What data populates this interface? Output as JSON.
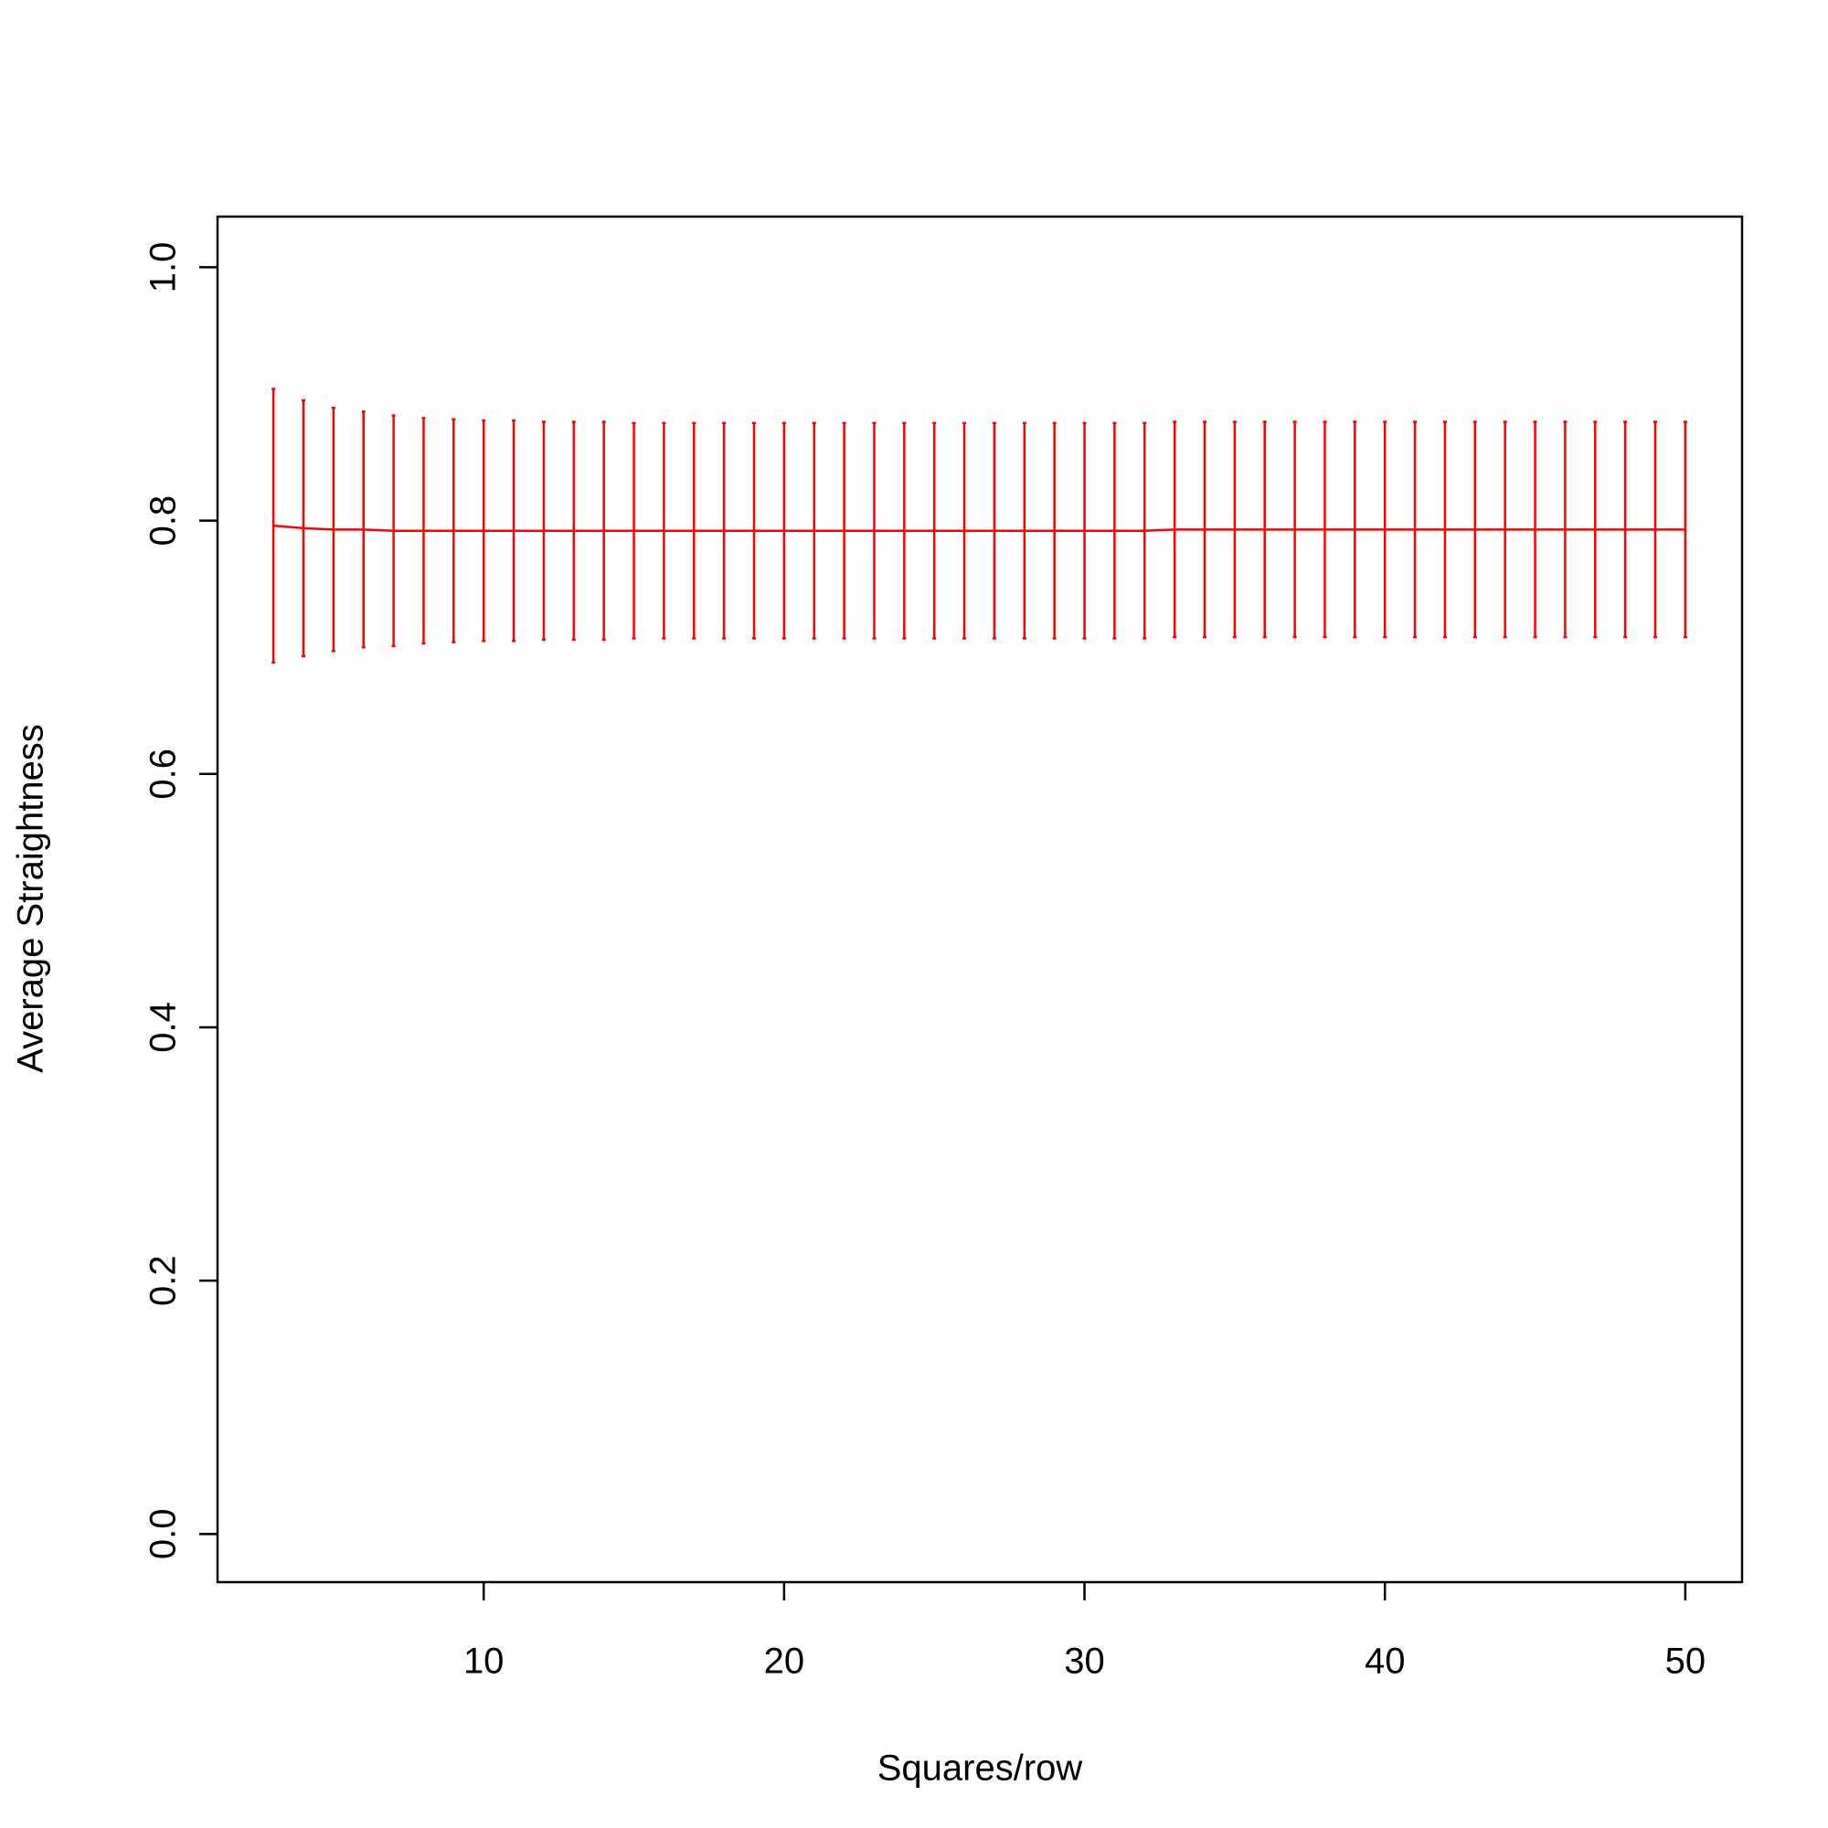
{
  "chart_data": {
    "type": "errorbar-line",
    "xlabel": "Squares/row",
    "ylabel": "Average Straightness",
    "x": [
      3,
      4,
      5,
      6,
      7,
      8,
      9,
      10,
      11,
      12,
      13,
      14,
      15,
      16,
      17,
      18,
      19,
      20,
      21,
      22,
      23,
      24,
      25,
      26,
      27,
      28,
      29,
      30,
      31,
      32,
      33,
      34,
      35,
      36,
      37,
      38,
      39,
      40,
      41,
      42,
      43,
      44,
      45,
      46,
      47,
      48,
      49,
      50
    ],
    "series": [
      {
        "color": "#ff0000",
        "values": [
          0.796,
          0.794,
          0.793,
          0.793,
          0.792,
          0.792,
          0.792,
          0.792,
          0.792,
          0.792,
          0.792,
          0.792,
          0.792,
          0.792,
          0.792,
          0.792,
          0.792,
          0.792,
          0.792,
          0.792,
          0.792,
          0.792,
          0.792,
          0.792,
          0.792,
          0.792,
          0.792,
          0.792,
          0.792,
          0.792,
          0.793,
          0.793,
          0.793,
          0.793,
          0.793,
          0.793,
          0.793,
          0.793,
          0.793,
          0.793,
          0.793,
          0.793,
          0.793,
          0.793,
          0.793,
          0.793,
          0.793,
          0.793
        ],
        "errors": [
          0.108,
          0.101,
          0.096,
          0.093,
          0.091,
          0.089,
          0.088,
          0.087,
          0.087,
          0.086,
          0.086,
          0.086,
          0.085,
          0.085,
          0.085,
          0.085,
          0.085,
          0.085,
          0.085,
          0.085,
          0.085,
          0.085,
          0.085,
          0.085,
          0.085,
          0.085,
          0.085,
          0.085,
          0.085,
          0.085,
          0.085,
          0.085,
          0.085,
          0.085,
          0.085,
          0.085,
          0.085,
          0.085,
          0.085,
          0.085,
          0.085,
          0.085,
          0.085,
          0.085,
          0.085,
          0.085,
          0.085,
          0.085
        ]
      }
    ],
    "xlim": [
      1.14,
      51.89
    ],
    "ylim": [
      -0.038,
      1.04
    ],
    "xticks": [
      10,
      20,
      30,
      40,
      50
    ],
    "yticks": [
      {
        "value": 0,
        "label": "0.0"
      },
      0.2,
      0.4,
      0.6,
      0.8,
      {
        "value": 1,
        "label": "1.0"
      }
    ],
    "grid": false
  }
}
